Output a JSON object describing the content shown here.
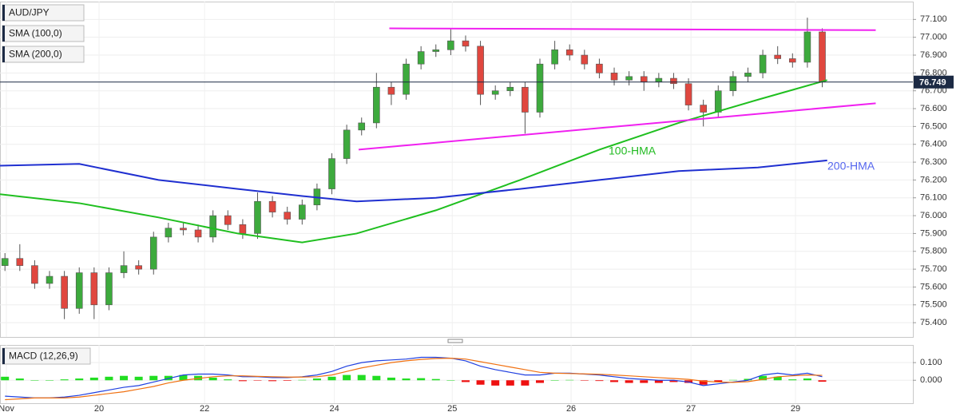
{
  "chart_data": [
    {
      "type": "candlestick",
      "labels": [
        "AUD/JPY",
        "SMA (100,0)",
        "SMA (200,0)"
      ],
      "x": [
        1,
        4,
        7,
        10,
        13,
        16,
        19,
        22,
        25,
        28,
        31,
        34,
        37,
        40,
        43,
        46,
        49,
        52,
        55,
        58,
        61,
        64,
        67,
        70,
        73,
        76,
        79,
        82,
        85,
        88,
        91,
        94,
        97,
        100,
        103,
        106,
        109,
        112,
        115,
        118,
        121,
        124,
        127,
        130,
        133,
        136,
        139,
        142,
        145,
        148,
        151,
        154,
        157,
        160,
        163,
        166
      ],
      "open": [
        75.72,
        75.76,
        75.72,
        75.62,
        75.66,
        75.48,
        75.68,
        75.5,
        75.68,
        75.72,
        75.7,
        75.88,
        75.93,
        75.92,
        75.88,
        76.0,
        75.95,
        75.9,
        76.08,
        76.02,
        75.98,
        76.06,
        76.15,
        76.32,
        76.48,
        76.52,
        76.72,
        76.68,
        76.85,
        76.92,
        76.93,
        76.98,
        76.95,
        76.68,
        76.7,
        76.72,
        76.58,
        76.85,
        76.93,
        76.9,
        76.85,
        76.8,
        76.76,
        76.78,
        76.75,
        76.77,
        76.74,
        76.62,
        76.58,
        76.7,
        76.78,
        76.8,
        76.9,
        76.88,
        76.86,
        77.03
      ],
      "high": [
        75.79,
        75.84,
        75.75,
        75.69,
        75.69,
        75.71,
        75.71,
        75.71,
        75.8,
        75.75,
        75.91,
        75.96,
        75.96,
        75.95,
        76.03,
        76.03,
        75.98,
        76.13,
        76.11,
        76.05,
        76.09,
        76.18,
        76.35,
        76.51,
        76.55,
        76.8,
        76.75,
        76.88,
        76.95,
        76.96,
        77.05,
        77.01,
        76.98,
        76.73,
        76.75,
        76.75,
        76.88,
        76.98,
        76.96,
        76.93,
        76.88,
        76.83,
        76.81,
        76.81,
        76.8,
        76.8,
        76.77,
        76.65,
        76.73,
        76.81,
        76.83,
        76.93,
        76.95,
        76.91,
        77.11,
        77.05
      ],
      "low": [
        75.69,
        75.69,
        75.59,
        75.59,
        75.42,
        75.45,
        75.42,
        75.47,
        75.65,
        75.67,
        75.67,
        75.85,
        75.89,
        75.85,
        75.85,
        75.92,
        75.87,
        75.87,
        75.99,
        75.95,
        75.95,
        76.03,
        76.12,
        76.29,
        76.45,
        76.49,
        76.62,
        76.65,
        76.82,
        76.89,
        76.9,
        76.92,
        76.62,
        76.65,
        76.67,
        76.46,
        76.55,
        76.82,
        76.87,
        76.82,
        76.77,
        76.73,
        76.73,
        76.7,
        76.72,
        76.71,
        76.59,
        76.5,
        76.55,
        76.67,
        76.75,
        76.77,
        76.85,
        76.83,
        76.83,
        76.72
      ],
      "close": [
        75.76,
        75.72,
        75.62,
        75.66,
        75.48,
        75.68,
        75.5,
        75.68,
        75.72,
        75.7,
        75.88,
        75.93,
        75.92,
        75.88,
        76.0,
        75.95,
        75.9,
        76.08,
        76.02,
        75.98,
        76.06,
        76.15,
        76.32,
        76.48,
        76.52,
        76.72,
        76.68,
        76.85,
        76.92,
        76.93,
        76.98,
        76.95,
        76.68,
        76.7,
        76.72,
        76.58,
        76.85,
        76.93,
        76.9,
        76.85,
        76.8,
        76.76,
        76.78,
        76.75,
        76.77,
        76.74,
        76.62,
        76.58,
        76.7,
        76.78,
        76.8,
        76.9,
        76.88,
        76.86,
        77.03,
        76.75
      ],
      "up_color": "#3daa3d",
      "down_color": "#e0473f",
      "lines": [
        {
          "name": "100-HMA",
          "color": "#1fbf1f",
          "x": [
            0,
            16,
            32,
            48,
            61,
            72,
            88,
            105,
            121,
            137,
            153,
            167
          ],
          "values": [
            76.12,
            76.07,
            75.99,
            75.9,
            75.85,
            75.9,
            76.03,
            76.2,
            76.37,
            76.52,
            76.65,
            76.76
          ]
        },
        {
          "name": "200-HMA",
          "color": "#1f2fd0",
          "x": [
            0,
            16,
            32,
            48,
            61,
            72,
            88,
            105,
            121,
            137,
            153,
            167
          ],
          "values": [
            76.28,
            76.29,
            76.2,
            76.15,
            76.11,
            76.08,
            76.1,
            76.15,
            76.2,
            76.25,
            76.27,
            76.31
          ]
        }
      ],
      "trendlines": [
        {
          "color": "#f020f0",
          "x": [
            78.6,
            176.8
          ],
          "values": [
            77.05,
            77.04
          ]
        },
        {
          "color": "#f020f0",
          "x": [
            72.4,
            176.8
          ],
          "values": [
            76.37,
            76.63
          ]
        }
      ],
      "last_price": 76.749,
      "xlim": [
        0,
        184.3
      ],
      "xticks": [
        {
          "value": 1.3,
          "label": "Nov"
        },
        {
          "value": 20,
          "label": "20"
        },
        {
          "value": 41.3,
          "label": "22"
        },
        {
          "value": 67.5,
          "label": "24"
        },
        {
          "value": 91.3,
          "label": "25"
        },
        {
          "value": 115.3,
          "label": "26"
        },
        {
          "value": 139.5,
          "label": "27"
        },
        {
          "value": 160.6,
          "label": "29"
        }
      ],
      "ylim": [
        75.32,
        77.2
      ],
      "yticks": [
        {
          "value": 75.4,
          "label": "75.400"
        },
        {
          "value": 75.5,
          "label": "75.500"
        },
        {
          "value": 75.6,
          "label": "75.600"
        },
        {
          "value": 75.7,
          "label": "75.700"
        },
        {
          "value": 75.8,
          "label": "75.800"
        },
        {
          "value": 75.9,
          "label": "75.900"
        },
        {
          "value": 76.0,
          "label": "76.000"
        },
        {
          "value": 76.1,
          "label": "76.100"
        },
        {
          "value": 76.2,
          "label": "76.200"
        },
        {
          "value": 76.3,
          "label": "76.300"
        },
        {
          "value": 76.4,
          "label": "76.400"
        },
        {
          "value": 76.5,
          "label": "76.500"
        },
        {
          "value": 76.6,
          "label": "76.600"
        },
        {
          "value": 76.7,
          "label": "76.700"
        },
        {
          "value": 76.8,
          "label": "76.800"
        },
        {
          "value": 76.9,
          "label": "76.900"
        },
        {
          "value": 77.0,
          "label": "77.000"
        },
        {
          "value": 77.1,
          "label": "77.100"
        }
      ],
      "grid": true
    },
    {
      "type": "macd",
      "label": "MACD (12,26,9)",
      "x": [
        1,
        4,
        7,
        10,
        13,
        16,
        19,
        22,
        25,
        28,
        31,
        34,
        37,
        40,
        43,
        46,
        49,
        52,
        55,
        58,
        61,
        64,
        67,
        70,
        73,
        76,
        79,
        82,
        85,
        88,
        91,
        94,
        97,
        100,
        103,
        106,
        109,
        112,
        115,
        118,
        121,
        124,
        127,
        130,
        133,
        136,
        139,
        142,
        145,
        148,
        151,
        154,
        157,
        160,
        163,
        166
      ],
      "macd": {
        "color": "#2040e0",
        "values": [
          -0.09,
          -0.095,
          -0.1,
          -0.1,
          -0.095,
          -0.085,
          -0.07,
          -0.055,
          -0.04,
          -0.03,
          -0.01,
          0.01,
          0.03,
          0.035,
          0.035,
          0.03,
          0.02,
          0.02,
          0.015,
          0.015,
          0.02,
          0.03,
          0.05,
          0.08,
          0.1,
          0.11,
          0.115,
          0.12,
          0.13,
          0.13,
          0.125,
          0.11,
          0.08,
          0.06,
          0.045,
          0.03,
          0.03,
          0.04,
          0.04,
          0.035,
          0.03,
          0.02,
          0.01,
          0.005,
          0.0,
          0.0,
          -0.01,
          -0.03,
          -0.02,
          -0.01,
          0.0,
          0.03,
          0.04,
          0.03,
          0.04,
          0.02
        ]
      },
      "signal": {
        "color": "#f07010",
        "values": [
          -0.11,
          -0.105,
          -0.1,
          -0.1,
          -0.1,
          -0.095,
          -0.085,
          -0.075,
          -0.065,
          -0.05,
          -0.035,
          -0.015,
          0.0,
          0.01,
          0.02,
          0.025,
          0.025,
          0.022,
          0.02,
          0.018,
          0.018,
          0.02,
          0.03,
          0.05,
          0.07,
          0.085,
          0.1,
          0.11,
          0.118,
          0.123,
          0.125,
          0.12,
          0.105,
          0.09,
          0.075,
          0.06,
          0.045,
          0.04,
          0.038,
          0.036,
          0.034,
          0.03,
          0.025,
          0.02,
          0.015,
          0.01,
          0.005,
          -0.005,
          -0.01,
          -0.012,
          -0.008,
          0.005,
          0.02,
          0.025,
          0.03,
          0.028
        ]
      },
      "histogram": {
        "up_color": "#22dd22",
        "down_color": "#ee1111",
        "values": [
          0.02,
          0.01,
          0,
          0,
          0.005,
          0.01,
          0.015,
          0.02,
          0.025,
          0.02,
          0.025,
          0.025,
          0.03,
          0.025,
          0.015,
          0.005,
          -0.005,
          -0.002,
          -0.005,
          -0.003,
          0.002,
          0.01,
          0.02,
          0.03,
          0.03,
          0.025,
          0.015,
          0.01,
          0.012,
          0.007,
          0,
          -0.01,
          -0.025,
          -0.03,
          -0.03,
          -0.03,
          -0.015,
          0,
          0.002,
          -0.001,
          -0.004,
          -0.01,
          -0.015,
          -0.015,
          -0.015,
          -0.01,
          -0.015,
          -0.025,
          -0.01,
          0.002,
          0.008,
          0.025,
          0.02,
          0.005,
          0.01,
          -0.008
        ]
      },
      "xlim": [
        0,
        184.3
      ],
      "xticks": [
        {
          "value": 1.3,
          "label": "Nov"
        },
        {
          "value": 20,
          "label": "20"
        },
        {
          "value": 41.3,
          "label": "22"
        },
        {
          "value": 67.5,
          "label": "24"
        },
        {
          "value": 91.3,
          "label": "25"
        },
        {
          "value": 115.3,
          "label": "26"
        },
        {
          "value": 139.5,
          "label": "27"
        },
        {
          "value": 160.6,
          "label": "29"
        }
      ],
      "ylim": [
        -0.13,
        0.2
      ],
      "yticks": [
        {
          "value": 0.1,
          "label": "0.100"
        },
        {
          "value": 0,
          "label": "0.000"
        }
      ],
      "grid": true
    }
  ]
}
